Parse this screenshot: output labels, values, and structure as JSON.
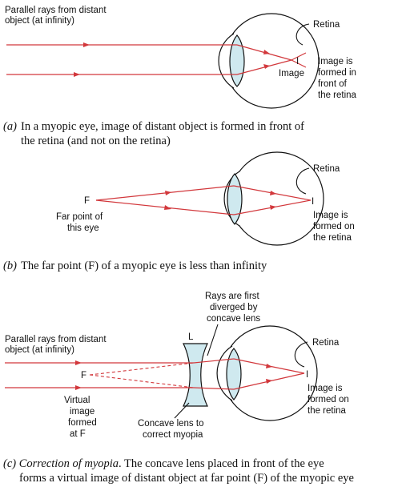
{
  "panel_a": {
    "rays_label": [
      "Parallel rays from distant",
      "object (at infinity)"
    ],
    "retina": "Retina",
    "image_mark": "I",
    "image": "Image",
    "image_note": [
      "Image is",
      "formed in",
      "front of",
      "the retina"
    ],
    "caption_letter": "(a)",
    "caption": [
      "In a myopic eye, image of distant object is formed in front of",
      "the retina (and not on the retina)"
    ]
  },
  "panel_b": {
    "retina": "Retina",
    "f_label": "F",
    "far_point": [
      "Far point of",
      "this eye"
    ],
    "image_mark": "I",
    "image_note": [
      "Image is",
      "formed on",
      "the retina"
    ],
    "caption_letter": "(b)",
    "caption": "The far point (F) of a myopic eye is less than infinity"
  },
  "panel_c": {
    "diverged": [
      "Rays are first",
      "diverged by",
      "concave lens"
    ],
    "lens_label": "L",
    "rays_label": [
      "Parallel rays from distant",
      "object (at infinity)"
    ],
    "retina": "Retina",
    "f_label": "F",
    "virtual": [
      "Virtual",
      "image",
      "formed",
      "at F"
    ],
    "concave_note": [
      "Concave lens to",
      "correct myopia"
    ],
    "image_mark": "I",
    "image_note": [
      "Image is",
      "formed on",
      "the retina"
    ],
    "caption_letter": "(c)",
    "caption_italic": "Correction of myopia",
    "caption": [
      ". The concave lens placed in front of the eye",
      "forms a virtual image of distant object at far point (F) of the myopic eye"
    ]
  }
}
